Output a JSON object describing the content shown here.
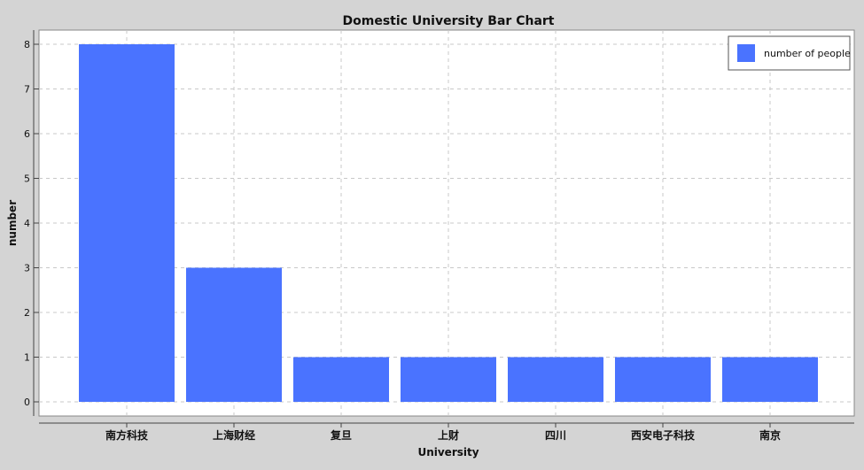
{
  "chart_data": {
    "type": "bar",
    "title": "Domestic University Bar Chart",
    "xlabel": "University",
    "ylabel": "number",
    "categories": [
      "南方科技",
      "上海财经",
      "复旦",
      "上财",
      "四川",
      "西安电子科技",
      "南京"
    ],
    "series": [
      {
        "name": "number of people",
        "values": [
          8,
          3,
          1,
          1,
          1,
          1,
          1
        ]
      }
    ],
    "ylim": [
      0,
      8
    ],
    "yticks": [
      0,
      1,
      2,
      3,
      4,
      5,
      6,
      7,
      8
    ],
    "grid": true,
    "legend_position": "top-right",
    "colors": {
      "bar": "#4a73ff",
      "background": "#d4d4d4",
      "plot_background": "#ffffff",
      "grid": "#c8c8c8"
    }
  }
}
